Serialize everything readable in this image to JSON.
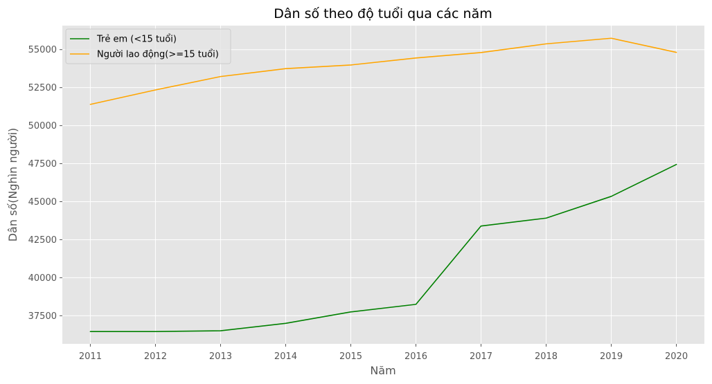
{
  "chart_data": {
    "type": "line",
    "title": "Dân số theo độ tuổi qua các năm",
    "xlabel": "Năm",
    "ylabel": "Dân số(Nghìn người)",
    "x": [
      2011,
      2012,
      2013,
      2014,
      2015,
      2016,
      2017,
      2018,
      2019,
      2020
    ],
    "xticks": [
      "2011",
      "2012",
      "2013",
      "2014",
      "2015",
      "2016",
      "2017",
      "2018",
      "2019",
      "2020"
    ],
    "yticks": [
      37500,
      40000,
      42500,
      45000,
      47500,
      50000,
      52500,
      55000
    ],
    "ylim": [
      35650,
      56580
    ],
    "xlim": [
      2010.57,
      2020.43
    ],
    "grid": true,
    "legend_position": "top-left",
    "series": [
      {
        "name": "Trẻ em (<15 tuổi)",
        "color": "#008000",
        "values": [
          36460,
          36460,
          36510,
          37000,
          37750,
          38250,
          43400,
          43920,
          45350,
          47450
        ]
      },
      {
        "name": "Người lao động(>=15 tuổi)",
        "color": "#FFA500",
        "values": [
          51400,
          52350,
          53230,
          53750,
          53990,
          54450,
          54810,
          55380,
          55750,
          54820
        ]
      }
    ]
  }
}
